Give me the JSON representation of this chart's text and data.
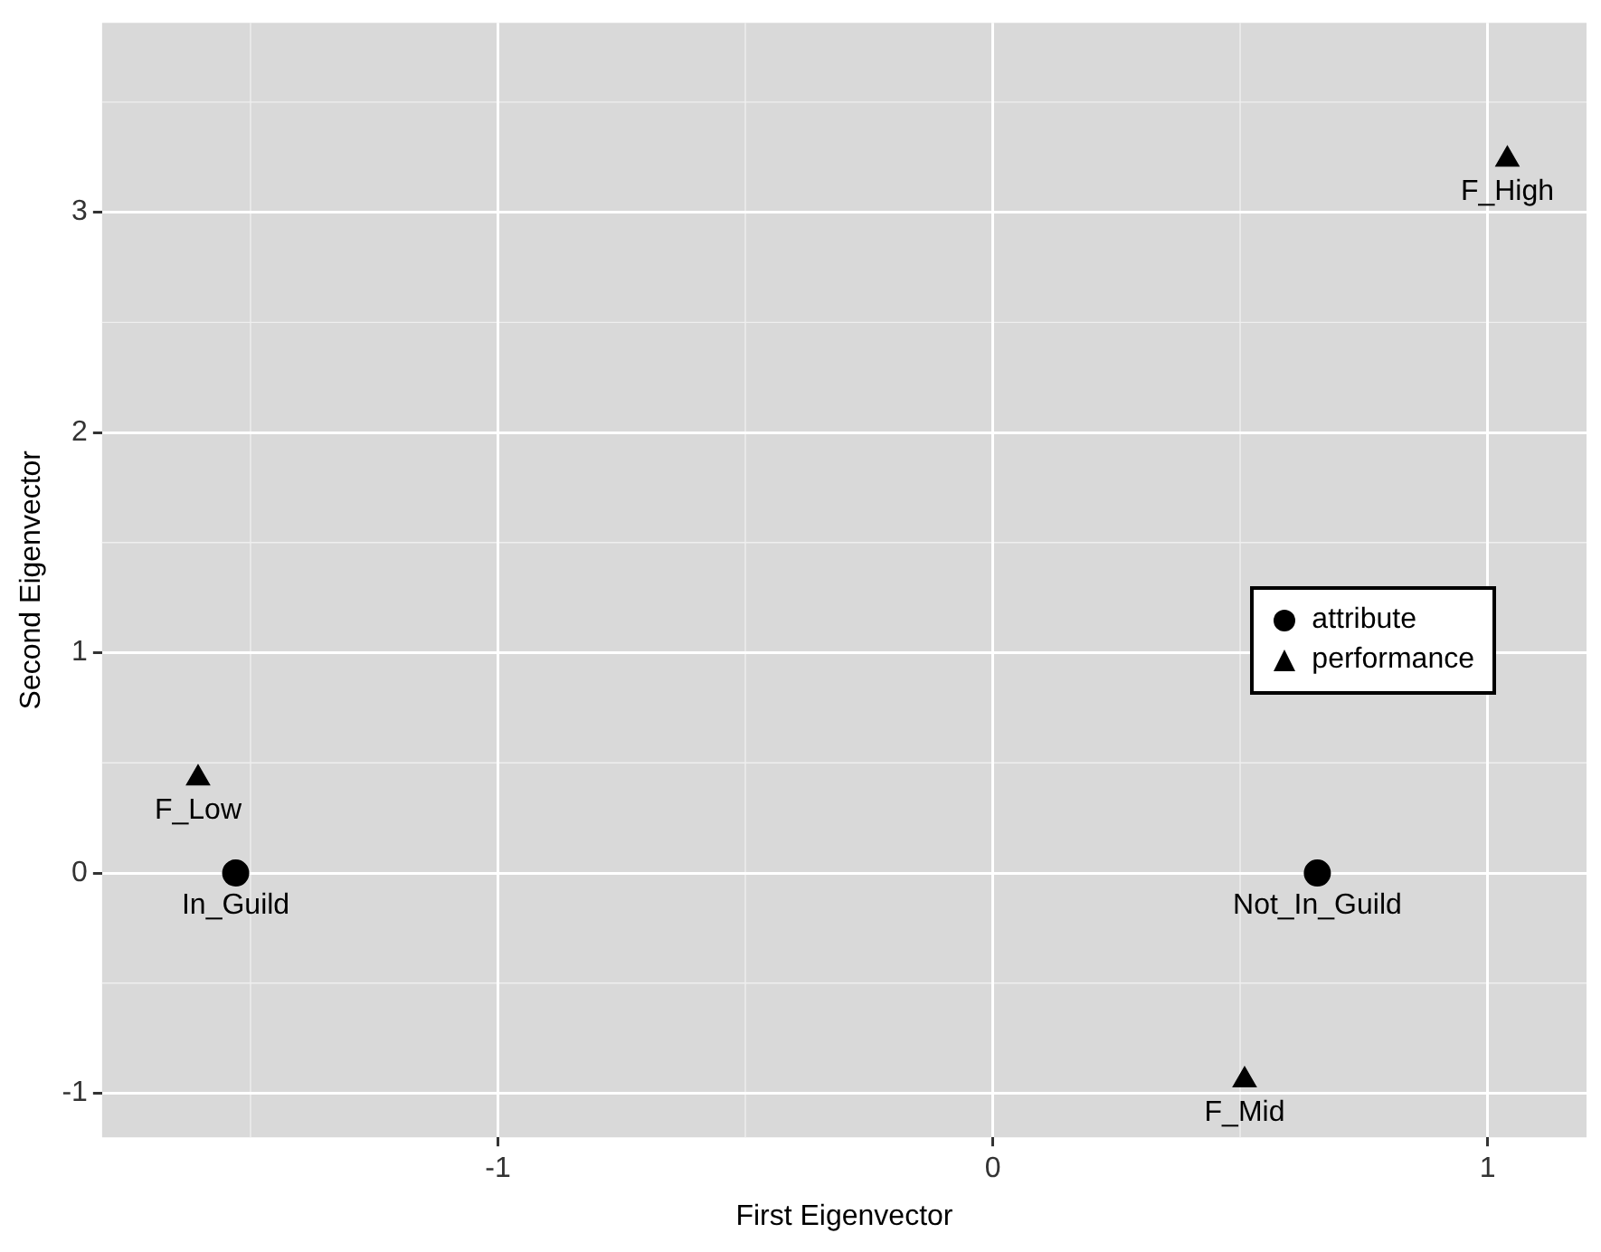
{
  "chart_data": {
    "type": "scatter",
    "xlabel": "First Eigenvector",
    "ylabel": "Second Eigenvector",
    "xlim": [
      -1.8,
      1.2
    ],
    "xticks": [
      -1,
      0,
      1
    ],
    "ylim": [
      -1.2,
      3.86
    ],
    "yticks": [
      -1,
      0,
      1,
      2,
      3
    ],
    "grid": true,
    "legend": "right",
    "series": [
      {
        "name": "attribute",
        "color": "#000000",
        "marker": "circle",
        "x": [
          -1.53,
          0.656
        ],
        "values": [
          0,
          0
        ]
      },
      {
        "name": "performance",
        "color": "#000000",
        "marker": "triangle",
        "x": [
          1.04,
          -1.606,
          0.509
        ],
        "values": [
          3.24,
          0.43,
          -0.94
        ]
      }
    ],
    "annotations": [
      {
        "text": "F_High",
        "x": 1.04,
        "y": 3.24
      },
      {
        "text": "F_Low",
        "x": -1.606,
        "y": 0.43
      },
      {
        "text": "In_Guild",
        "x": -1.53,
        "y": 0
      },
      {
        "text": "Not_In_Guild",
        "x": 0.656,
        "y": 0
      },
      {
        "text": "F_Mid",
        "x": 0.509,
        "y": -0.94
      }
    ]
  }
}
